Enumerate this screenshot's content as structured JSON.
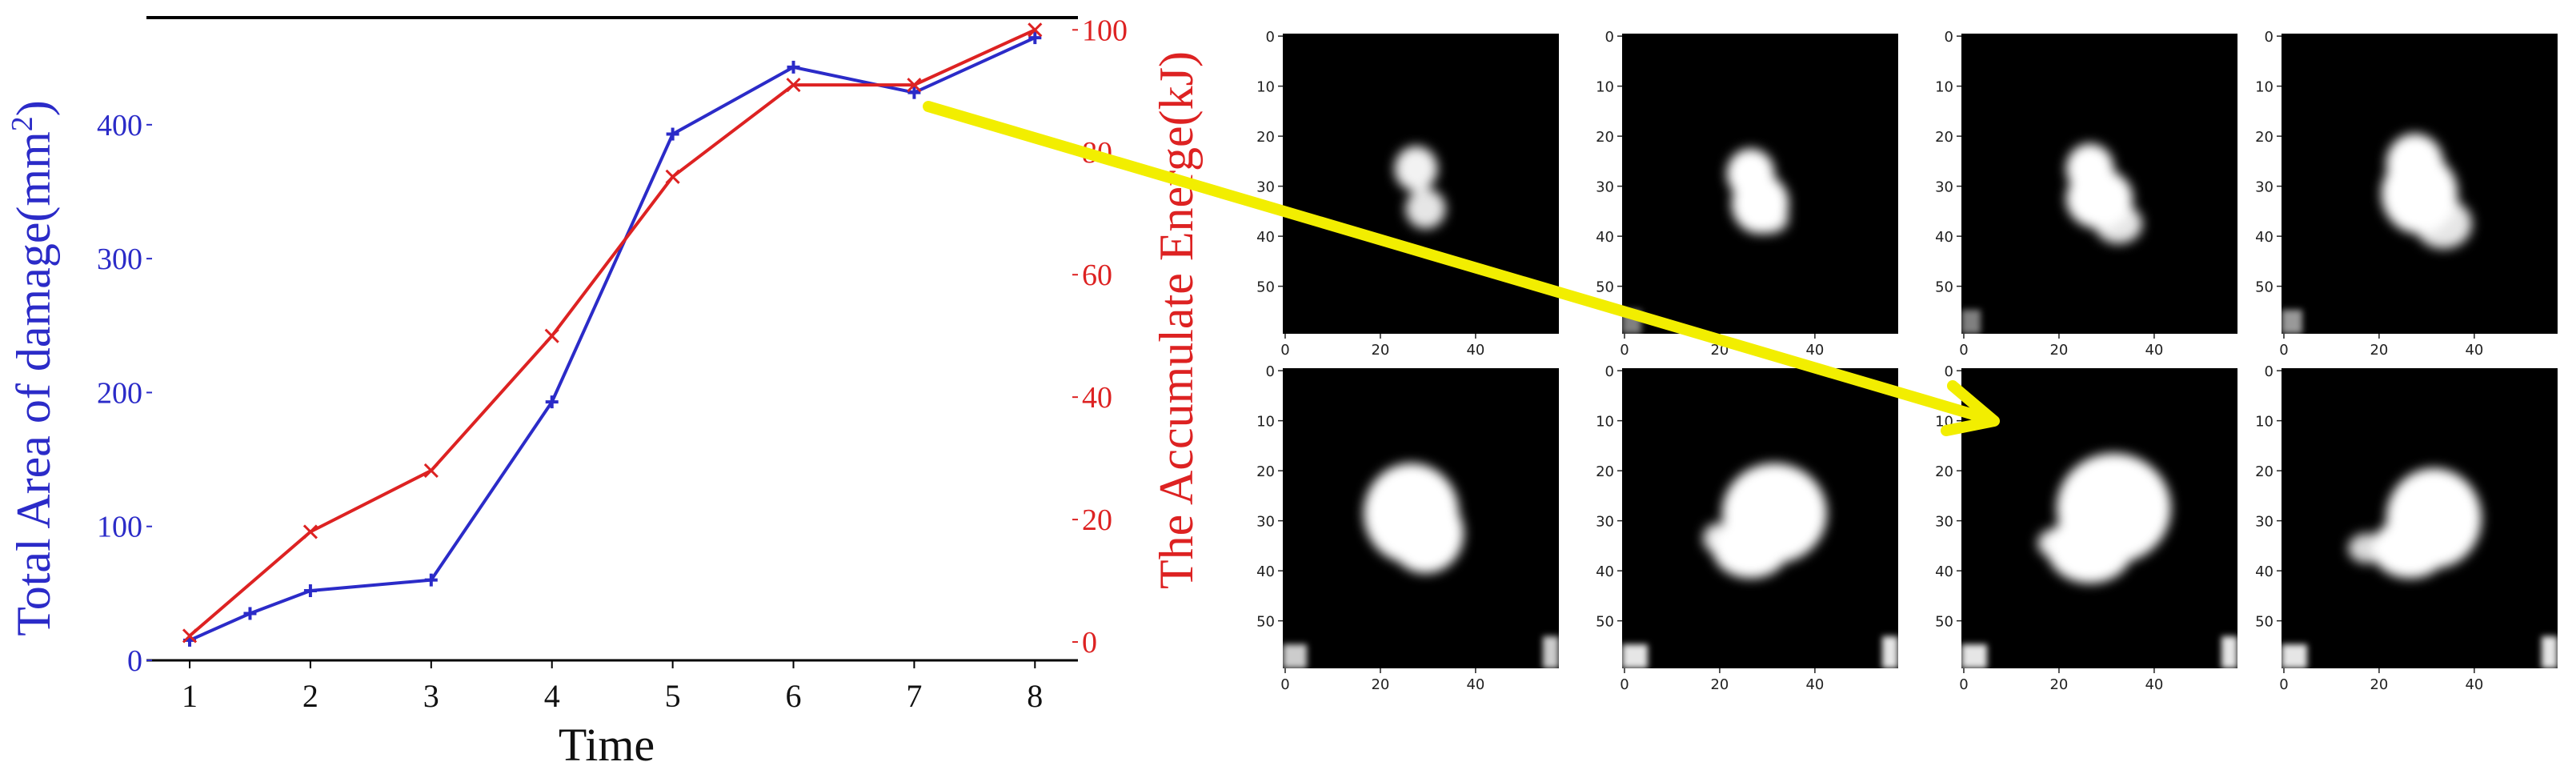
{
  "chart_data": {
    "type": "line",
    "xlabel": "Time",
    "x": [
      1,
      2,
      3,
      4,
      5,
      6,
      7,
      8
    ],
    "x_ticks": [
      "1",
      "2",
      "3",
      "4",
      "5",
      "6",
      "7",
      "8"
    ],
    "left_axis": {
      "label": "Total Area of damage(mm",
      "label_sup": "2",
      "label_tail": ")",
      "range": [
        0,
        480
      ],
      "ticks": [
        "0",
        "100",
        "200",
        "300",
        "400"
      ],
      "color": "#2b2bc8"
    },
    "right_axis": {
      "label": "The Accumulate Energe(kJ)",
      "range": [
        -3,
        102
      ],
      "ticks": [
        "0",
        "20",
        "40",
        "60",
        "80",
        "100"
      ],
      "color": "#dd2222"
    },
    "series": [
      {
        "axis": "left",
        "color": "#2b2bc8",
        "marker": "plus",
        "x": [
          1,
          1.5,
          2,
          3,
          4,
          5,
          6,
          7,
          8
        ],
        "values": [
          15,
          35,
          52,
          60,
          193,
          393,
          443,
          424,
          465
        ]
      },
      {
        "axis": "right",
        "color": "#dd2222",
        "marker": "x",
        "x": [
          1,
          2,
          3,
          4,
          5,
          6,
          7,
          8
        ],
        "values": [
          1,
          18,
          28,
          50,
          76,
          91,
          91,
          100
        ]
      }
    ]
  },
  "image_grid": {
    "tick_y": [
      "0",
      "10",
      "20",
      "30",
      "40",
      "50"
    ],
    "tick_x": [
      "0",
      "20",
      "40"
    ],
    "panels": [
      {
        "blobs": [
          [
            28,
            27,
            4.5,
            4.5,
            0.95
          ],
          [
            30,
            35,
            4.2,
            4,
            0.9
          ]
        ],
        "corner": 0
      },
      {
        "blobs": [
          [
            27,
            28,
            5,
            5,
            1
          ],
          [
            29,
            34,
            6,
            6,
            1
          ],
          [
            31,
            37,
            4,
            3,
            0.8
          ]
        ],
        "corner": 0.5
      },
      {
        "blobs": [
          [
            27,
            27,
            5,
            5,
            1
          ],
          [
            29,
            33,
            7,
            6,
            1
          ],
          [
            33,
            38,
            5,
            4,
            0.9
          ]
        ],
        "corner": 0.5
      },
      {
        "blobs": [
          [
            28,
            26,
            6,
            6,
            1
          ],
          [
            29,
            32,
            8,
            8,
            1
          ],
          [
            34,
            38,
            6,
            5,
            0.9
          ]
        ],
        "corner": 0.6
      },
      {
        "blobs": [
          [
            27,
            29,
            10,
            10,
            1
          ],
          [
            30,
            33,
            8,
            8,
            1
          ]
        ],
        "corner": 0.8
      },
      {
        "blobs": [
          [
            32,
            29,
            11,
            10,
            1
          ],
          [
            27,
            36,
            8,
            6,
            1
          ],
          [
            20,
            34,
            3,
            3,
            0.9
          ]
        ],
        "corner": 0.9
      },
      {
        "blobs": [
          [
            32,
            28,
            12,
            11,
            1
          ],
          [
            27,
            36,
            9,
            7,
            1
          ],
          [
            20,
            35,
            4,
            3,
            0.9
          ]
        ],
        "corner": 0.9
      },
      {
        "blobs": [
          [
            32,
            30,
            10,
            10,
            1
          ],
          [
            27,
            36,
            8,
            6,
            1
          ],
          [
            18,
            36,
            4,
            3,
            0.85
          ]
        ],
        "corner": 0.9
      }
    ]
  },
  "arrow_color": "#f2ee00"
}
